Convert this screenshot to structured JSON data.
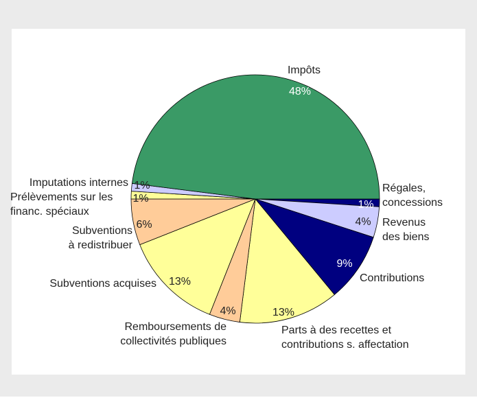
{
  "chart_data": {
    "type": "pie",
    "categories": [
      "Régales,\nconcessions",
      "Revenus\ndes biens",
      "Contributions",
      "Parts à des recettes et\ncontributions s. affectation",
      "Remboursements de\ncollectivités publiques",
      "Subventions acquises",
      "Subventions\nà redistribuer",
      "Prélèvements sur les\nfinanc. spéciaux",
      "Imputations internes",
      "Impôts"
    ],
    "values": [
      1,
      4,
      9,
      13,
      4,
      13,
      6,
      1,
      1,
      48
    ],
    "value_labels": [
      "1%",
      "4%",
      "9%",
      "13%",
      "4%",
      "13%",
      "6%",
      "1%",
      "1%",
      "48%"
    ],
    "colors": [
      "#000080",
      "#ccccff",
      "#000080",
      "#ffff99",
      "#ffcc99",
      "#ffff99",
      "#ffcc99",
      "#ffff99",
      "#ccccff",
      "#3a9a66"
    ]
  }
}
